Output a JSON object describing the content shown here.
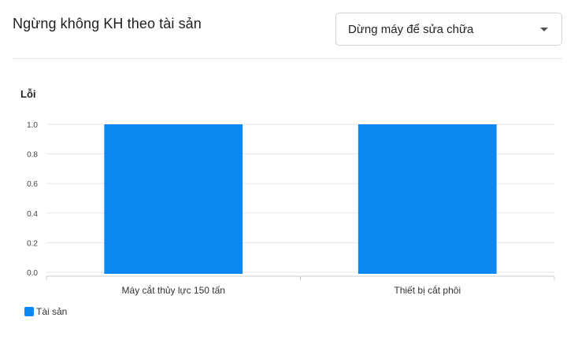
{
  "header": {
    "title": "Ngừng không KH theo tài sản",
    "select": {
      "value": "Dừng máy để sửa chữa"
    }
  },
  "colors": {
    "bar": "#0b88f2",
    "grid": "#e5e5e5",
    "axis": "#cccccc"
  },
  "icons": {
    "caret": "caret-down-icon"
  },
  "chart_data": {
    "type": "bar",
    "ylabel": "Lỗi",
    "categories": [
      "Máy cắt thủy lực 150 tấn",
      "Thiết bị cắt phôi"
    ],
    "series": [
      {
        "name": "Tài sản",
        "values": [
          1,
          1
        ]
      }
    ],
    "ylim": [
      0,
      1
    ],
    "yticks": [
      "0.0",
      "0.2",
      "0.4",
      "0.6",
      "0.8",
      "1.0"
    ],
    "grid": true,
    "legend": "bottom-left"
  }
}
